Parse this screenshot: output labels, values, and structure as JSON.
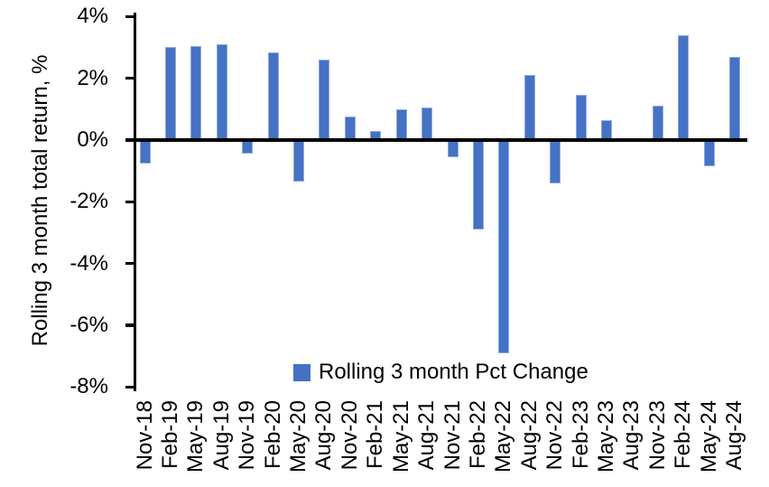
{
  "chart_data": {
    "type": "bar",
    "title": "",
    "xlabel": "",
    "ylabel": "Rolling 3 month total return, %",
    "categories": [
      "Nov-18",
      "Feb-19",
      "May-19",
      "Aug-19",
      "Nov-19",
      "Feb-20",
      "May-20",
      "Aug-20",
      "Nov-20",
      "Feb-21",
      "May-21",
      "Aug-21",
      "Nov-21",
      "Feb-22",
      "May-22",
      "Aug-22",
      "Nov-22",
      "Feb-23",
      "May-23",
      "Aug-23",
      "Nov-23",
      "Feb-24",
      "May-24",
      "Aug-24"
    ],
    "series": [
      {
        "name": "Rolling 3 month Pct Change",
        "values": [
          -0.75,
          3.0,
          3.05,
          3.1,
          -0.45,
          2.85,
          -1.35,
          2.6,
          0.75,
          0.3,
          1.0,
          1.05,
          -0.55,
          -2.9,
          -6.9,
          2.1,
          -1.4,
          1.45,
          0.65,
          0.0,
          1.1,
          3.4,
          -0.85,
          2.7
        ]
      }
    ],
    "ylim": [
      -8,
      4
    ],
    "ytick_labels": [
      "4%",
      "2%",
      "0%",
      "-2%",
      "-4%",
      "-6%",
      "-8%"
    ],
    "ytick_values": [
      4,
      2,
      0,
      -2,
      -4,
      -6,
      -8
    ],
    "grid": false,
    "legend_position": "bottom-center-inside",
    "bar_color": "#4472C4",
    "bar_edge_color": "#8FAADC",
    "axis_color": "#000000"
  },
  "legend": {
    "label": "Rolling 3 month Pct Change",
    "swatch_color": "#4472C4"
  }
}
